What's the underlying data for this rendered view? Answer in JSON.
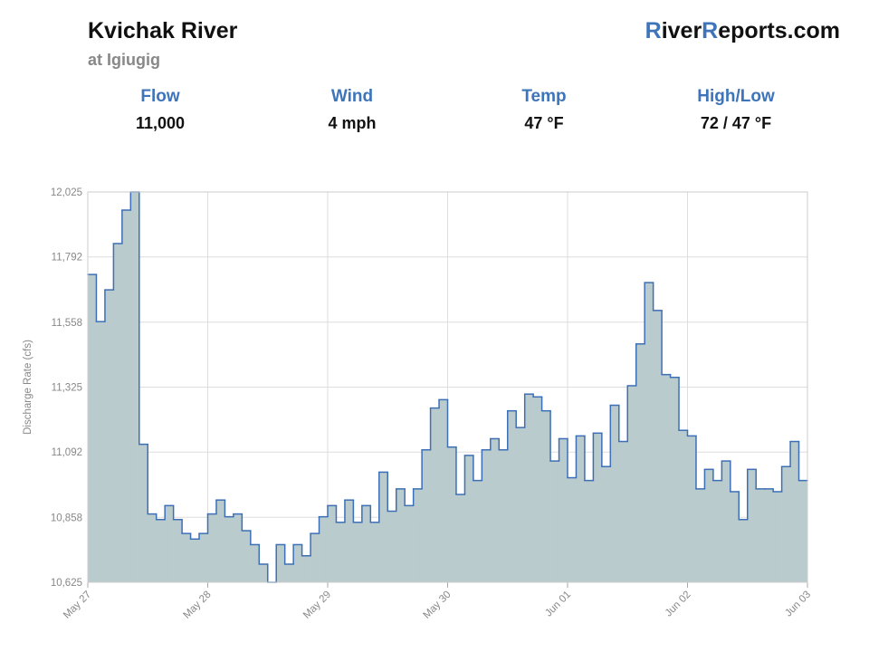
{
  "header": {
    "title": "Kvichak River",
    "subtitle": "at Igiugig",
    "brand": [
      "R",
      "iver",
      "R",
      "eports.com"
    ]
  },
  "stats": [
    {
      "label": "Flow",
      "value": "11,000"
    },
    {
      "label": "Wind",
      "value": "4 mph"
    },
    {
      "label": "Temp",
      "value": "47 °F"
    },
    {
      "label": "High/Low",
      "value": "72 / 47 °F"
    }
  ],
  "chart_data": {
    "type": "step-area",
    "y_label": "Discharge Rate (cfs)",
    "color": "#3d6fb6",
    "fill": "#b9cbcd",
    "grid": true,
    "x": [
      0,
      2,
      4,
      6,
      8,
      10,
      12,
      14,
      16,
      18,
      20,
      22,
      24,
      26,
      28,
      30,
      32,
      34,
      36,
      38,
      40,
      42,
      44,
      46,
      48,
      50,
      52,
      54,
      56,
      58,
      60,
      62,
      64,
      66,
      68,
      70,
      72,
      74,
      76,
      78,
      80,
      82,
      84,
      86,
      88,
      90,
      92,
      94,
      96,
      98,
      100,
      102,
      104,
      106,
      108,
      110,
      112,
      114,
      116,
      118,
      120,
      122,
      124,
      126,
      128,
      130,
      132,
      134,
      136,
      138,
      140,
      142,
      144,
      146,
      148,
      150,
      152,
      154,
      156,
      158,
      160,
      162,
      164,
      166
    ],
    "values": [
      11729,
      11560,
      11674,
      11840,
      11960,
      12025,
      11120,
      10870,
      10850,
      10900,
      10850,
      10800,
      10780,
      10800,
      10870,
      10920,
      10860,
      10870,
      10810,
      10760,
      10690,
      10625,
      10760,
      10690,
      10760,
      10720,
      10800,
      10860,
      10900,
      10840,
      10920,
      10840,
      10900,
      10840,
      11020,
      10880,
      10960,
      10900,
      10960,
      11100,
      11250,
      11280,
      11110,
      10940,
      11080,
      10990,
      11100,
      11140,
      11100,
      11240,
      11180,
      11300,
      11290,
      11240,
      11060,
      11140,
      11000,
      11150,
      10990,
      11160,
      11040,
      11260,
      11130,
      11330,
      11480,
      11700,
      11600,
      11370,
      11360,
      11170,
      11150,
      10960,
      11030,
      10990,
      11060,
      10950,
      10850,
      11030,
      10960,
      10960,
      10950,
      11040,
      11130,
      10990
    ],
    "xlim": [
      0,
      168
    ],
    "xticks": [
      {
        "value": 0,
        "label": "May 27"
      },
      {
        "value": 28,
        "label": "May 28"
      },
      {
        "value": 56,
        "label": "May 29"
      },
      {
        "value": 84,
        "label": "May 30"
      },
      {
        "value": 112,
        "label": "Jun 01"
      },
      {
        "value": 140,
        "label": "Jun 02"
      },
      {
        "value": 168,
        "label": "Jun 03"
      }
    ],
    "ylim": [
      10625,
      12025
    ],
    "yticks": [
      {
        "value": 10625,
        "label": "10,625"
      },
      {
        "value": 10858,
        "label": "10,858"
      },
      {
        "value": 11092,
        "label": "11,092"
      },
      {
        "value": 11325,
        "label": "11,325"
      },
      {
        "value": 11558,
        "label": "11,558"
      },
      {
        "value": 11792,
        "label": "11,792"
      },
      {
        "value": 12025,
        "label": "12,025"
      }
    ]
  }
}
